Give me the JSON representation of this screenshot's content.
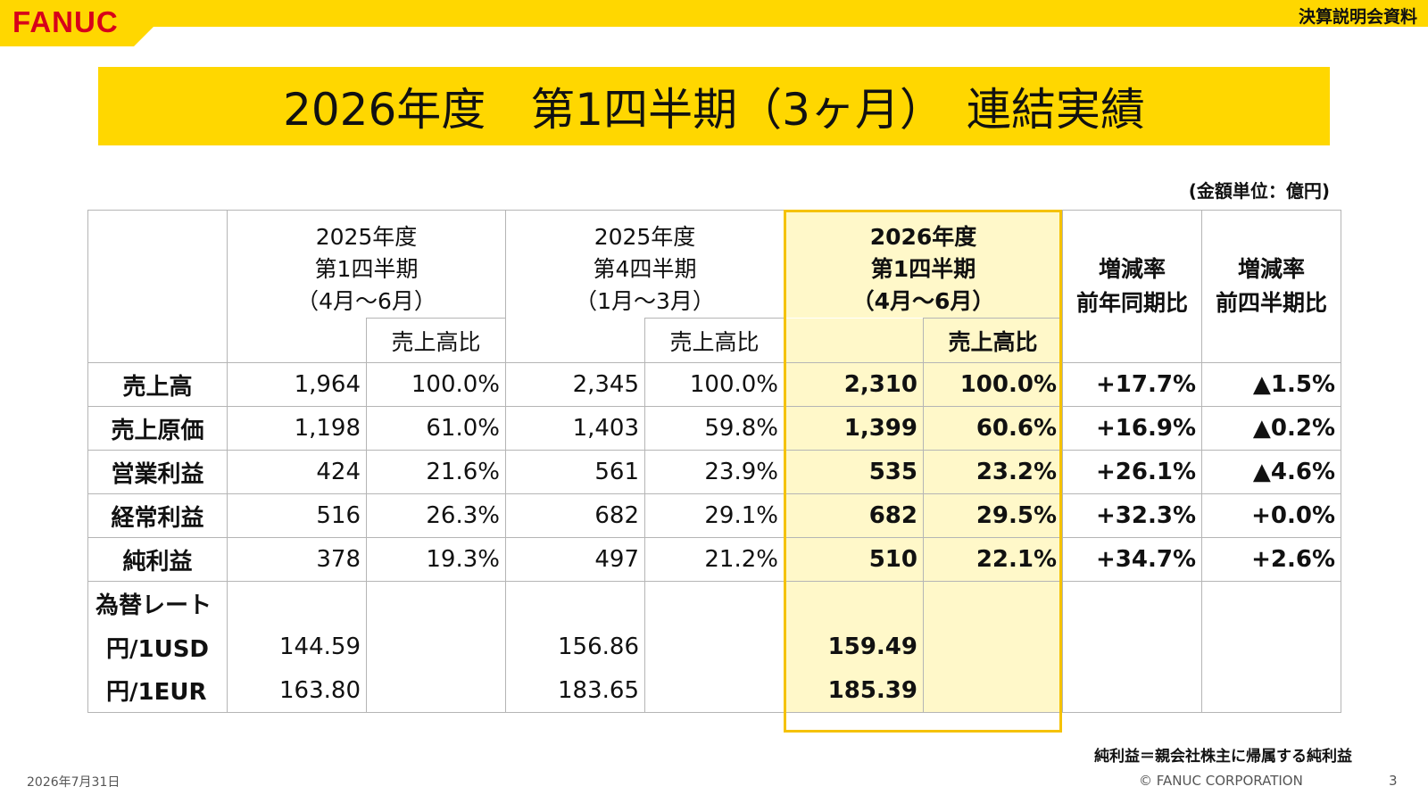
{
  "header": {
    "logo": "FANUC",
    "doc_type": "決算説明会資料",
    "brand_color": "#ffd700",
    "logo_color": "#d7001a"
  },
  "title": "2026年度　第1四半期（3ヶ月）　連結実績",
  "unit_note": "(金額単位：億円)",
  "table": {
    "columns": {
      "prev_year_q1": [
        "2025年度",
        "第1四半期",
        "（4月～6月）"
      ],
      "prev_q4": [
        "2025年度",
        "第4四半期",
        "（1月～3月）"
      ],
      "current_q1": [
        "2026年度",
        "第1四半期",
        "（4月～6月）"
      ],
      "yoy_change": [
        "増減率",
        "前年同期比"
      ],
      "qoq_change": [
        "増減率",
        "前四半期比"
      ]
    },
    "ratio_header": "売上高比",
    "rows": [
      {
        "label": "売上高",
        "prev_year_q1": "1,964",
        "prev_year_q1_ratio": "100.0%",
        "prev_q4": "2,345",
        "prev_q4_ratio": "100.0%",
        "current_q1": "2,310",
        "current_q1_ratio": "100.0%",
        "yoy": "+17.7%",
        "qoq": "▲1.5%"
      },
      {
        "label": "売上原価",
        "prev_year_q1": "1,198",
        "prev_year_q1_ratio": "61.0%",
        "prev_q4": "1,403",
        "prev_q4_ratio": "59.8%",
        "current_q1": "1,399",
        "current_q1_ratio": "60.6%",
        "yoy": "+16.9%",
        "qoq": "▲0.2%"
      },
      {
        "label": "営業利益",
        "prev_year_q1": "424",
        "prev_year_q1_ratio": "21.6%",
        "prev_q4": "561",
        "prev_q4_ratio": "23.9%",
        "current_q1": "535",
        "current_q1_ratio": "23.2%",
        "yoy": "+26.1%",
        "qoq": "▲4.6%"
      },
      {
        "label": "経常利益",
        "prev_year_q1": "516",
        "prev_year_q1_ratio": "26.3%",
        "prev_q4": "682",
        "prev_q4_ratio": "29.1%",
        "current_q1": "682",
        "current_q1_ratio": "29.5%",
        "yoy": "+32.3%",
        "qoq": "+0.0%"
      },
      {
        "label": "純利益",
        "prev_year_q1": "378",
        "prev_year_q1_ratio": "19.3%",
        "prev_q4": "497",
        "prev_q4_ratio": "21.2%",
        "current_q1": "510",
        "current_q1_ratio": "22.1%",
        "yoy": "+34.7%",
        "qoq": "+2.6%"
      }
    ],
    "fx": {
      "label": "為替レート",
      "usd": {
        "label": "円/1USD",
        "prev_year_q1": "144.59",
        "prev_q4": "156.86",
        "current_q1": "159.49"
      },
      "eur": {
        "label": "円/1EUR",
        "prev_year_q1": "163.80",
        "prev_q4": "183.65",
        "current_q1": "185.39"
      }
    }
  },
  "footnote": "純利益＝親会社株主に帰属する純利益",
  "footer": {
    "date": "2026年7月31日",
    "copyright": "© FANUC CORPORATION",
    "page": "3"
  }
}
